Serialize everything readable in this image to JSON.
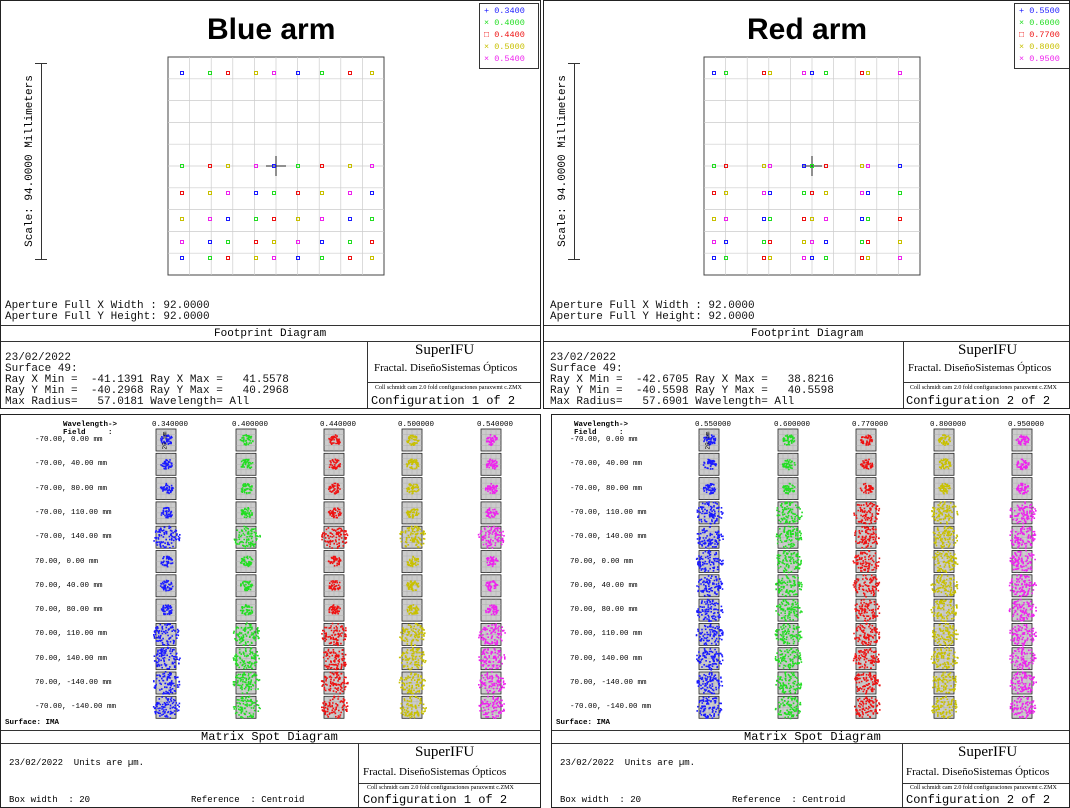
{
  "colors": {
    "blue": "#1a1aff",
    "green": "#22dd22",
    "red": "#ee1111",
    "yellow": "#c8c000",
    "magenta": "#ee22ee"
  },
  "footprint_panels": [
    {
      "title": "Blue arm",
      "legend": [
        "0.3400",
        "0.4000",
        "0.4400",
        "0.5000",
        "0.5400"
      ],
      "scale": "Scale: 94.0000 Millimeters",
      "aperture_x": "Aperture Full X Width : 92.0000",
      "aperture_y": "Aperture Full Y Height: 92.0000",
      "diagram_title": "Footprint Diagram",
      "date": "23/02/2022",
      "surface": "Surface 49:",
      "ray_x": "Ray X Min =  -41.1391 Ray X Max =   41.5578",
      "ray_y": "Ray Y Min =  -40.2968 Ray Y Max =   40.2968",
      "max_radius": "Max Radius=   57.0181 Wavelength= All",
      "brand": "SuperIFU",
      "company": "Fractal. DiseñoSistemas Ópticos",
      "file": "Coll schmidt cam 2.0 fold configuraciones paraxwmt c.ZMX",
      "config": "Configuration 1 of 2"
    },
    {
      "title": "Red arm",
      "legend": [
        "0.5500",
        "0.6000",
        "0.7700",
        "0.8000",
        "0.9500"
      ],
      "scale": "Scale: 94.0000 Millimeters",
      "aperture_x": "Aperture Full X Width : 92.0000",
      "aperture_y": "Aperture Full Y Height: 92.0000",
      "diagram_title": "Footprint Diagram",
      "date": "23/02/2022",
      "surface": "Surface 49:",
      "ray_x": "Ray X Min =  -42.6705 Ray X Max =   38.8216",
      "ray_y": "Ray Y Min =  -40.5598 Ray Y Max =   40.5598",
      "max_radius": "Max Radius=   57.6901 Wavelength= All",
      "brand": "SuperIFU",
      "company": "Fractal. DiseñoSistemas Ópticos",
      "file": "Coll schmidt cam 2.0 fold configuraciones paraxwmt c.ZMX",
      "config": "Configuration 2 of 2"
    }
  ],
  "spot_panels": [
    {
      "wavelength_header": "Wavelength->",
      "field_header": "Field     :",
      "wavelengths": [
        "0.340000",
        "0.400000",
        "0.440000",
        "0.500000",
        "0.540000"
      ],
      "scale_label": "20 um",
      "fields": [
        "-70.00, 0.00 mm",
        "-70.00, 40.00 mm",
        "-70.00, 80.00 mm",
        "-70.00, 110.00 mm",
        "-70.00, 140.00 mm",
        "70.00, 0.00 mm",
        "70.00, 40.00 mm",
        "70.00, 80.00 mm",
        "70.00, 110.00 mm",
        "70.00, 140.00 mm",
        "70.00, -140.00 mm",
        "-70.00, -140.00 mm"
      ],
      "surface": "Surface: IMA",
      "diagram_title": "Matrix Spot Diagram",
      "date_units": "23/02/2022  Units are µm.",
      "box_width": "Box width  : 20",
      "reference": "Reference  : Centroid",
      "brand": "SuperIFU",
      "company": "Fractal. DiseñoSistemas Ópticos",
      "file": "Coll schmidt cam 2.0 fold configuraciones paraxwmt c.ZMX",
      "config": "Configuration 1 of 2"
    },
    {
      "wavelength_header": "Wavelength->",
      "field_header": "Field     :",
      "wavelengths": [
        "0.550000",
        "0.600000",
        "0.770000",
        "0.800000",
        "0.950000"
      ],
      "scale_label": "20 um",
      "fields": [
        "-70.00, 0.00 mm",
        "-70.00, 40.00 mm",
        "-70.00, 80.00 mm",
        "-70.00, 110.00 mm",
        "-70.00, 140.00 mm",
        "70.00, 0.00 mm",
        "70.00, 40.00 mm",
        "70.00, 80.00 mm",
        "70.00, 110.00 mm",
        "70.00, 140.00 mm",
        "70.00, -140.00 mm",
        "-70.00, -140.00 mm"
      ],
      "surface": "Surface: IMA",
      "diagram_title": "Matrix Spot Diagram",
      "date_units": "23/02/2022  Units are µm.",
      "box_width": "Box width  : 20",
      "reference": "Reference  : Centroid",
      "brand": "SuperIFU",
      "company": "Fractal. DiseñoSistemas Ópticos",
      "file": "Coll schmidt cam 2.0 fold configuraciones paraxwmt c.ZMX",
      "config": "Configuration 2 of 2"
    }
  ]
}
